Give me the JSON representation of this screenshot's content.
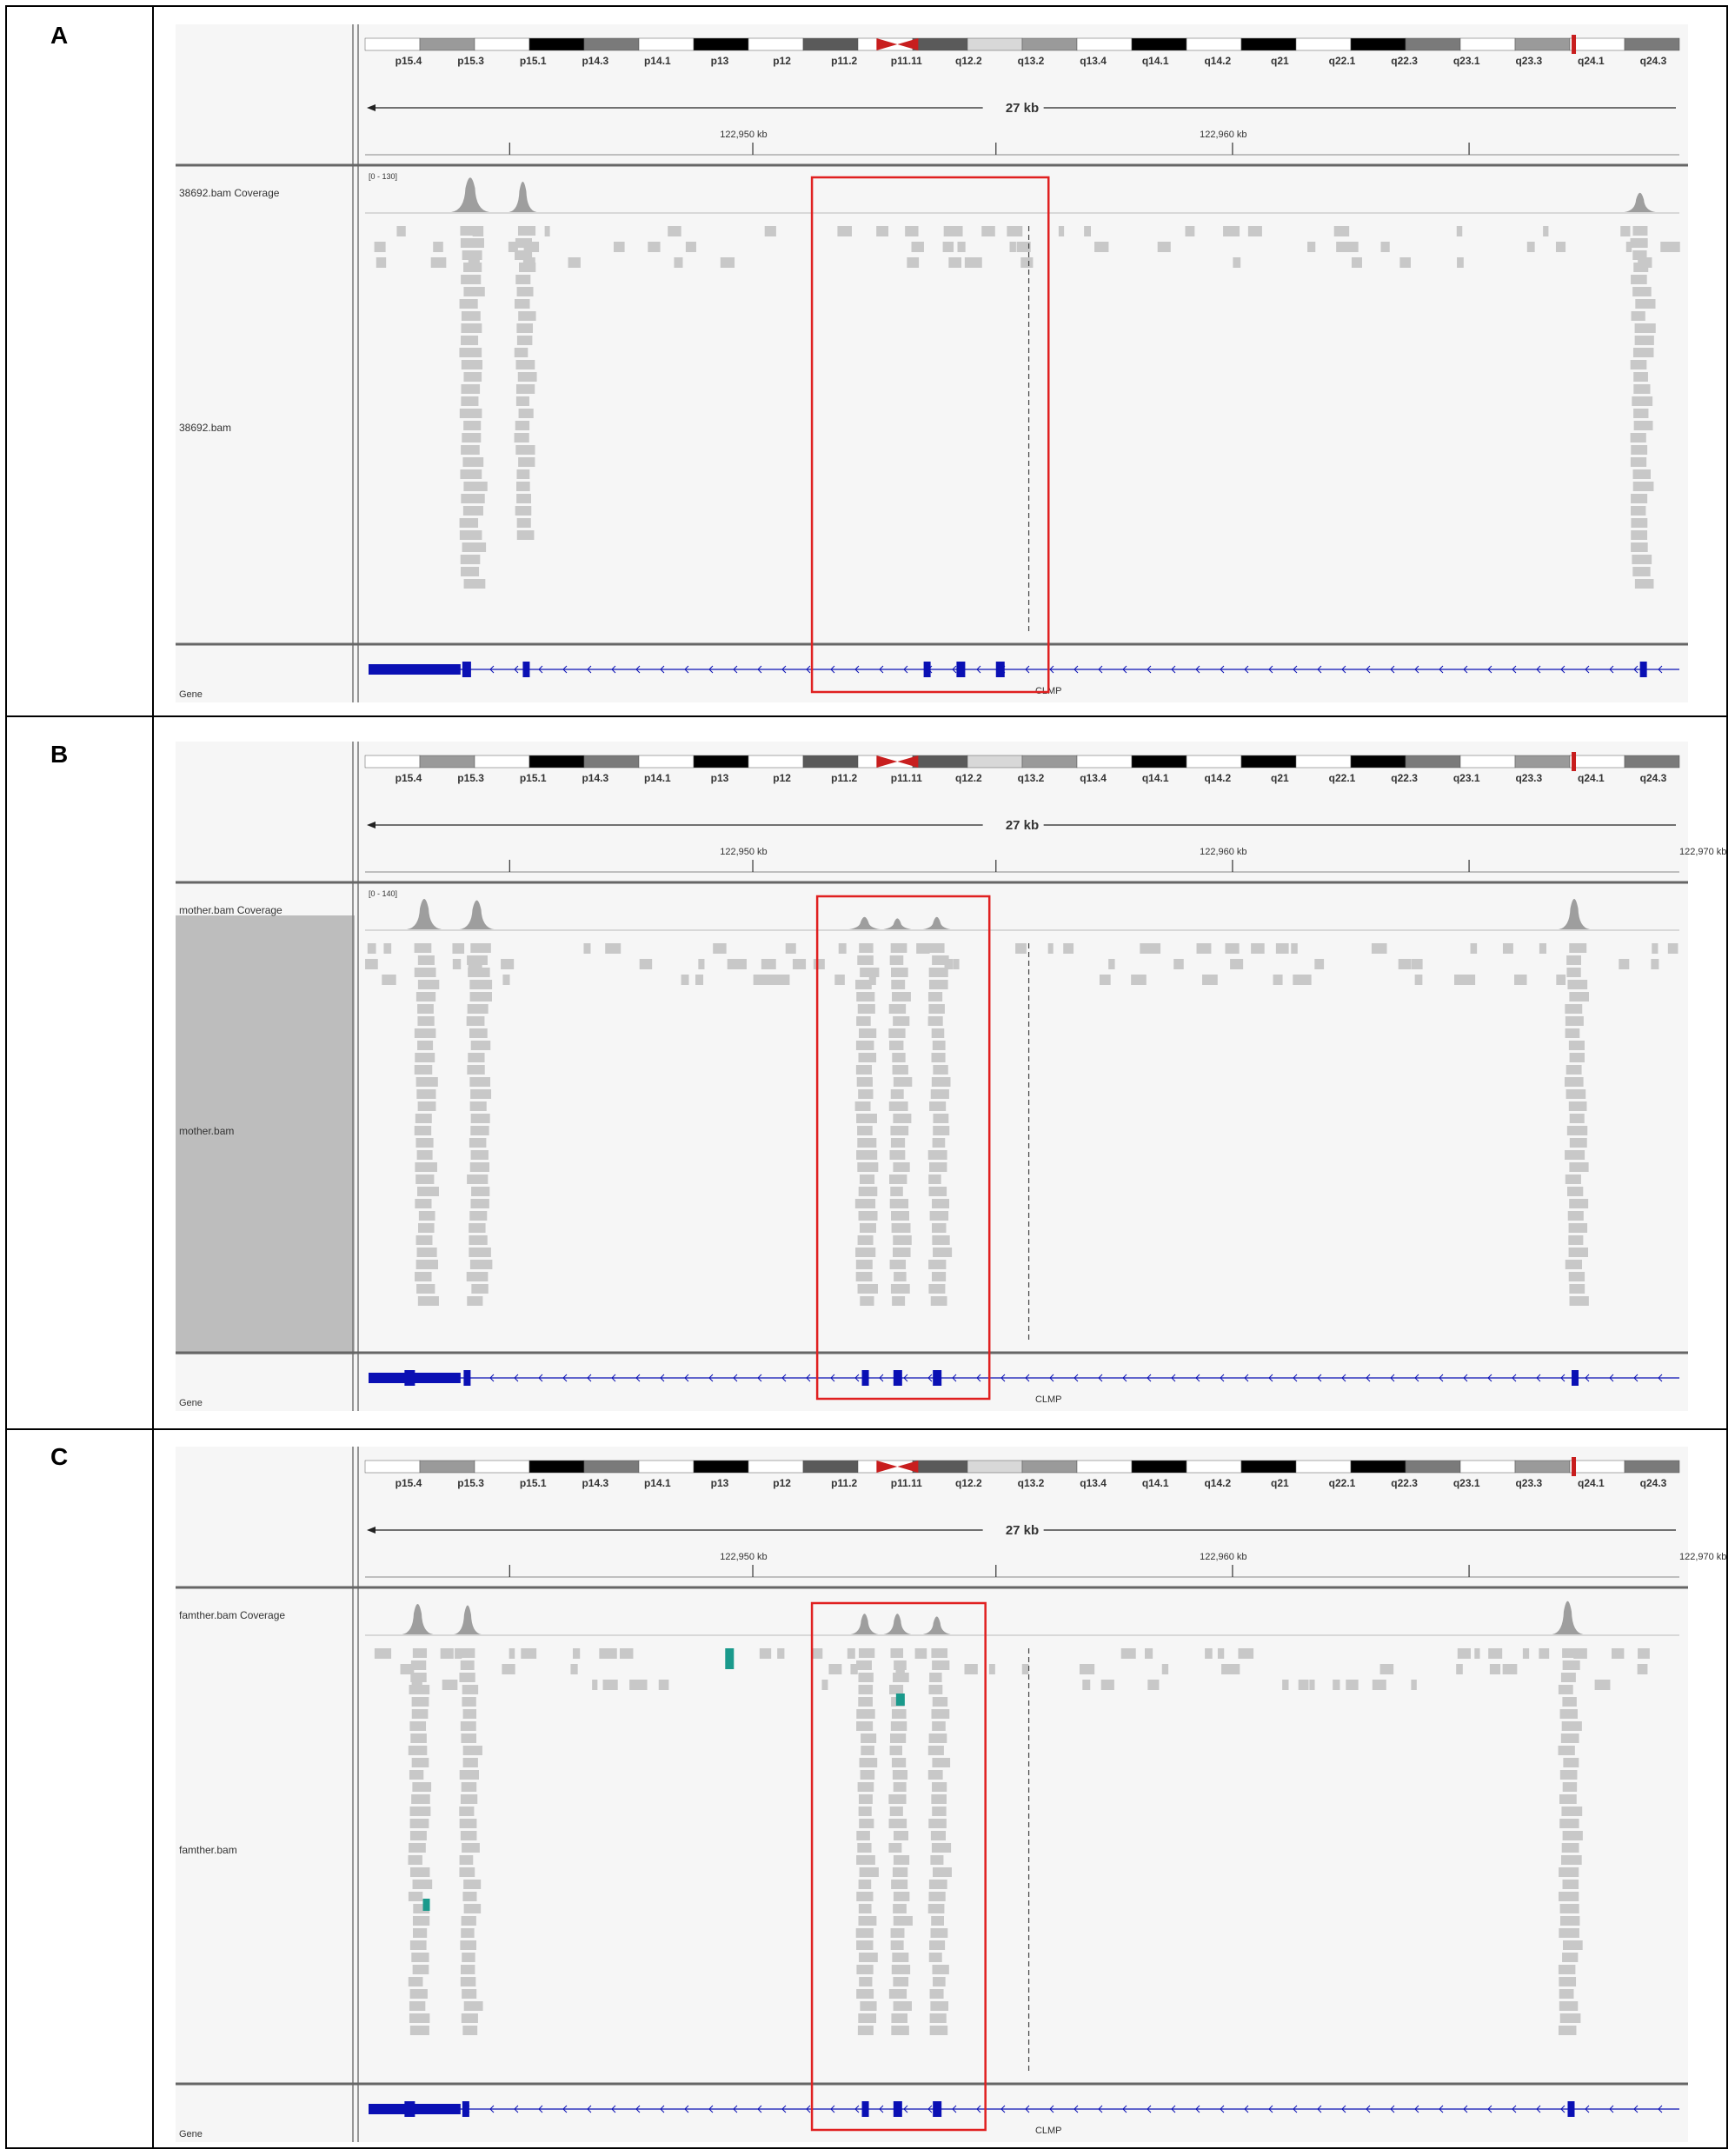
{
  "panels": [
    {
      "label": "A",
      "coverage_track": "38692.bam Coverage",
      "alignment_track": "38692.bam",
      "gene_track": "Gene",
      "coverage_range": "[0 - 130]",
      "has_red_box": true,
      "has_sidebar": false
    },
    {
      "label": "B",
      "coverage_track": "mother.bam Coverage",
      "alignment_track": "mother.bam",
      "gene_track": "Gene",
      "coverage_range": "[0 - 140]",
      "has_red_box": true,
      "has_sidebar": true
    },
    {
      "label": "C",
      "coverage_track": "famther.bam Coverage",
      "alignment_track": "famther.bam",
      "gene_track": "Gene",
      "coverage_range": "",
      "has_red_box": true,
      "has_sidebar": false
    }
  ],
  "ideogram_bands": [
    "p15.4",
    "p15.3",
    "p15.1",
    "p14.3",
    "p14.1",
    "p13",
    "p12",
    "p11.2",
    "p11.11",
    "q12.2",
    "q13.2",
    "q13.4",
    "q14.1",
    "q14.2",
    "q21",
    "q22.1",
    "q22.3",
    "q23.1",
    "q23.3",
    "q24.1",
    "q24.3"
  ],
  "span_label": "27 kb",
  "ruler_ticks": [
    "122,950 kb",
    "122,960 kb",
    "122,970 kb"
  ],
  "gene_name": "CLMP",
  "colors": {
    "read": "#c8c8c8",
    "coverage": "#9e9e9e",
    "gene": "#0a10b4",
    "highlight_box": "#e02020",
    "centromere": "#c81e1e",
    "mismatch": "#1a9a8c",
    "sidebar": "#bdbdbd"
  }
}
